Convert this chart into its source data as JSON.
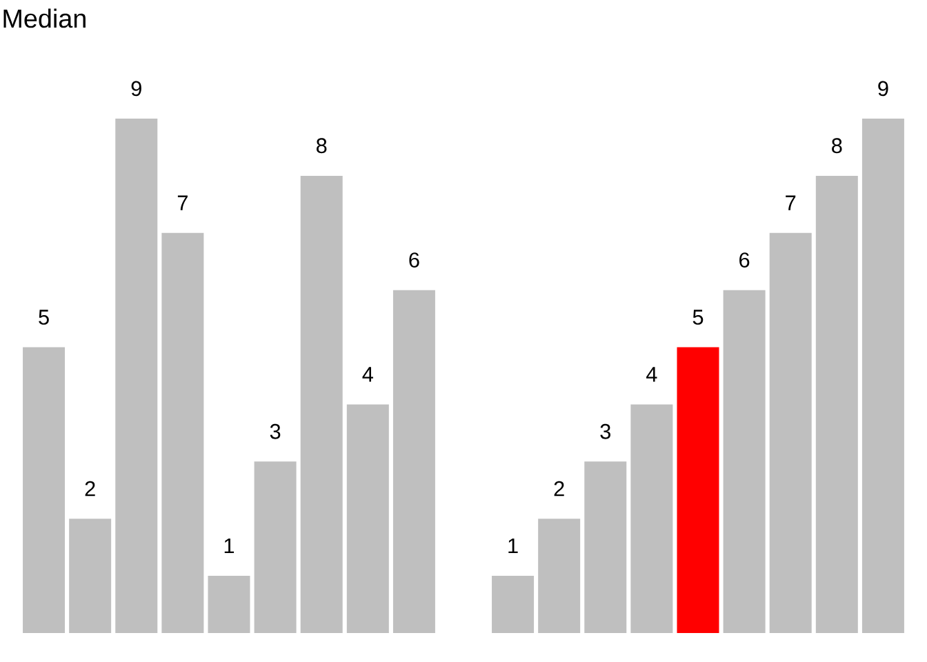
{
  "chart_data": [
    {
      "type": "bar",
      "title": "Median",
      "categories": [
        null,
        null,
        null,
        null,
        null,
        null,
        null,
        null,
        null
      ],
      "values": [
        5,
        2,
        9,
        7,
        1,
        3,
        8,
        4,
        6
      ],
      "colors": [
        "#bfbfbf",
        "#bfbfbf",
        "#bfbfbf",
        "#bfbfbf",
        "#bfbfbf",
        "#bfbfbf",
        "#bfbfbf",
        "#bfbfbf",
        "#bfbfbf"
      ],
      "data_labels": true
    },
    {
      "type": "bar",
      "categories": [
        null,
        null,
        null,
        null,
        null,
        null,
        null,
        null,
        null
      ],
      "values": [
        1,
        2,
        3,
        4,
        5,
        6,
        7,
        8,
        9
      ],
      "colors": [
        "#bfbfbf",
        "#bfbfbf",
        "#bfbfbf",
        "#bfbfbf",
        "#ff0000",
        "#bfbfbf",
        "#bfbfbf",
        "#bfbfbf",
        "#bfbfbf"
      ],
      "data_labels": true
    }
  ]
}
